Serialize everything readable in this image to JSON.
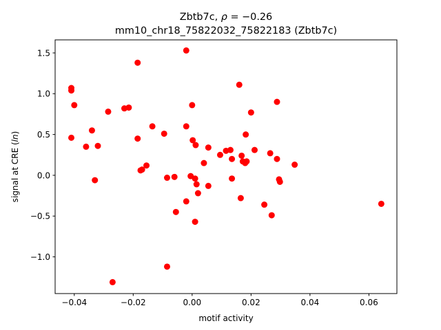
{
  "chart_data": {
    "type": "scatter",
    "title_line1_prefix": "Zbtb7c, ",
    "title_line1_rho": "ρ",
    "title_line1_suffix": " = −0.26",
    "title_line2": "mm10_chr18_75822032_75822183 (Zbtb7c)",
    "xlabel": "motif activity",
    "ylabel_prefix": "signal at CRE (",
    "ylabel_italic": "ln",
    "ylabel_suffix": ")",
    "xlim": [
      -0.0465,
      0.0695
    ],
    "ylim": [
      -1.45,
      1.66
    ],
    "x_ticks": [
      {
        "value": -0.04,
        "label": "−0.04"
      },
      {
        "value": -0.02,
        "label": "−0.02"
      },
      {
        "value": 0.0,
        "label": "0.00"
      },
      {
        "value": 0.02,
        "label": "0.02"
      },
      {
        "value": 0.04,
        "label": "0.04"
      },
      {
        "value": 0.06,
        "label": "0.06"
      }
    ],
    "y_ticks": [
      {
        "value": -1.0,
        "label": "−1.0"
      },
      {
        "value": -0.5,
        "label": "−0.5"
      },
      {
        "value": 0.0,
        "label": "0.0"
      },
      {
        "value": 0.5,
        "label": "0.5"
      },
      {
        "value": 1.0,
        "label": "1.0"
      },
      {
        "value": 1.5,
        "label": "1.5"
      }
    ],
    "marker_color": "#ff0000",
    "points": [
      {
        "x": -0.041,
        "y": 1.07
      },
      {
        "x": -0.041,
        "y": 1.04
      },
      {
        "x": -0.04,
        "y": 0.86
      },
      {
        "x": -0.041,
        "y": 0.46
      },
      {
        "x": -0.034,
        "y": 0.55
      },
      {
        "x": -0.036,
        "y": 0.35
      },
      {
        "x": -0.032,
        "y": 0.36
      },
      {
        "x": -0.033,
        "y": -0.06
      },
      {
        "x": -0.0285,
        "y": 0.78
      },
      {
        "x": -0.027,
        "y": -1.31
      },
      {
        "x": -0.023,
        "y": 0.82
      },
      {
        "x": -0.0215,
        "y": 0.83
      },
      {
        "x": -0.0185,
        "y": 1.38
      },
      {
        "x": -0.0185,
        "y": 0.45
      },
      {
        "x": -0.0175,
        "y": 0.06
      },
      {
        "x": -0.017,
        "y": 0.07
      },
      {
        "x": -0.0155,
        "y": 0.12
      },
      {
        "x": -0.0135,
        "y": 0.6
      },
      {
        "x": -0.0095,
        "y": 0.51
      },
      {
        "x": -0.0085,
        "y": -0.03
      },
      {
        "x": -0.0085,
        "y": -1.12
      },
      {
        "x": -0.006,
        "y": -0.02
      },
      {
        "x": -0.0055,
        "y": -0.45
      },
      {
        "x": -0.002,
        "y": 1.53
      },
      {
        "x": -0.002,
        "y": 0.6
      },
      {
        "x": -0.002,
        "y": -0.32
      },
      {
        "x": -0.0005,
        "y": -0.01
      },
      {
        "x": 0.0,
        "y": 0.86
      },
      {
        "x": 0.0002,
        "y": 0.43
      },
      {
        "x": 0.001,
        "y": -0.04
      },
      {
        "x": 0.0012,
        "y": 0.37
      },
      {
        "x": 0.0015,
        "y": -0.11
      },
      {
        "x": 0.002,
        "y": -0.22
      },
      {
        "x": 0.001,
        "y": -0.57
      },
      {
        "x": 0.004,
        "y": 0.15
      },
      {
        "x": 0.0055,
        "y": 0.34
      },
      {
        "x": 0.0055,
        "y": -0.13
      },
      {
        "x": 0.0095,
        "y": 0.25
      },
      {
        "x": 0.0115,
        "y": 0.3
      },
      {
        "x": 0.013,
        "y": 0.31
      },
      {
        "x": 0.0135,
        "y": 0.2
      },
      {
        "x": 0.0135,
        "y": -0.04
      },
      {
        "x": 0.016,
        "y": 1.11
      },
      {
        "x": 0.0165,
        "y": -0.28
      },
      {
        "x": 0.0168,
        "y": 0.24
      },
      {
        "x": 0.0172,
        "y": 0.17
      },
      {
        "x": 0.018,
        "y": 0.15
      },
      {
        "x": 0.0182,
        "y": 0.5
      },
      {
        "x": 0.0185,
        "y": 0.17
      },
      {
        "x": 0.02,
        "y": 0.77
      },
      {
        "x": 0.0212,
        "y": 0.31
      },
      {
        "x": 0.0245,
        "y": -0.36
      },
      {
        "x": 0.0265,
        "y": 0.27
      },
      {
        "x": 0.027,
        "y": -0.49
      },
      {
        "x": 0.0288,
        "y": 0.9
      },
      {
        "x": 0.0288,
        "y": 0.2
      },
      {
        "x": 0.0295,
        "y": -0.05
      },
      {
        "x": 0.0298,
        "y": -0.08
      },
      {
        "x": 0.0348,
        "y": 0.13
      },
      {
        "x": 0.0642,
        "y": -0.35
      }
    ]
  }
}
